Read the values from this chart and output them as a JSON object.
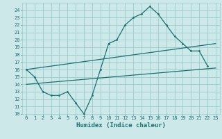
{
  "xlabel": "Humidex (Indice chaleur)",
  "bg_color": "#cce8e8",
  "grid_color": "#99cccc",
  "line_color": "#1a7070",
  "xlim": [
    -0.5,
    23.5
  ],
  "ylim": [
    10,
    25
  ],
  "yticks": [
    10,
    11,
    12,
    13,
    14,
    15,
    16,
    17,
    18,
    19,
    20,
    21,
    22,
    23,
    24
  ],
  "xticks": [
    0,
    1,
    2,
    3,
    4,
    5,
    6,
    7,
    8,
    9,
    10,
    11,
    12,
    13,
    14,
    15,
    16,
    17,
    18,
    19,
    20,
    21,
    22,
    23
  ],
  "line1_x": [
    0,
    1,
    2,
    3,
    4,
    5,
    6,
    7,
    8,
    9,
    10,
    11,
    12,
    13,
    14,
    15,
    16,
    17,
    18,
    19,
    20,
    21,
    22
  ],
  "line1_y": [
    16,
    15,
    13,
    12.5,
    12.5,
    13,
    11.5,
    10,
    12.5,
    16,
    19.5,
    20,
    22,
    23,
    23.5,
    24.5,
    23.5,
    22,
    20.5,
    19.5,
    18.5,
    18.5,
    16.5
  ],
  "line2_x": [
    0,
    23
  ],
  "line2_y": [
    16.0,
    19.5
  ],
  "line3_x": [
    0,
    23
  ],
  "line3_y": [
    14.0,
    16.2
  ]
}
